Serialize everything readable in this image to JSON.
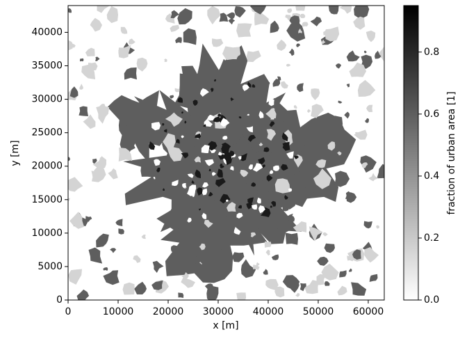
{
  "chart_data": {
    "type": "image",
    "xlabel": "x [m]",
    "ylabel": "y [m]",
    "xlim": [
      0,
      63200
    ],
    "ylim": [
      0,
      44000
    ],
    "xticks": [
      0,
      10000,
      20000,
      30000,
      40000,
      50000,
      60000
    ],
    "yticks": [
      0,
      5000,
      10000,
      15000,
      20000,
      25000,
      30000,
      35000,
      40000
    ],
    "colorbar": {
      "label": "fraction of urban area [1]",
      "lim": [
        0,
        0.95
      ],
      "colors": [
        "#ffffff",
        "#000000"
      ],
      "ticks": [
        {
          "value": 0,
          "label": "0.0"
        },
        {
          "value": 0.2,
          "label": "0.2"
        },
        {
          "value": 0.4,
          "label": "0.4"
        },
        {
          "value": 0.6,
          "label": "0.6"
        },
        {
          "value": 0.8,
          "label": "0.8"
        }
      ]
    }
  }
}
